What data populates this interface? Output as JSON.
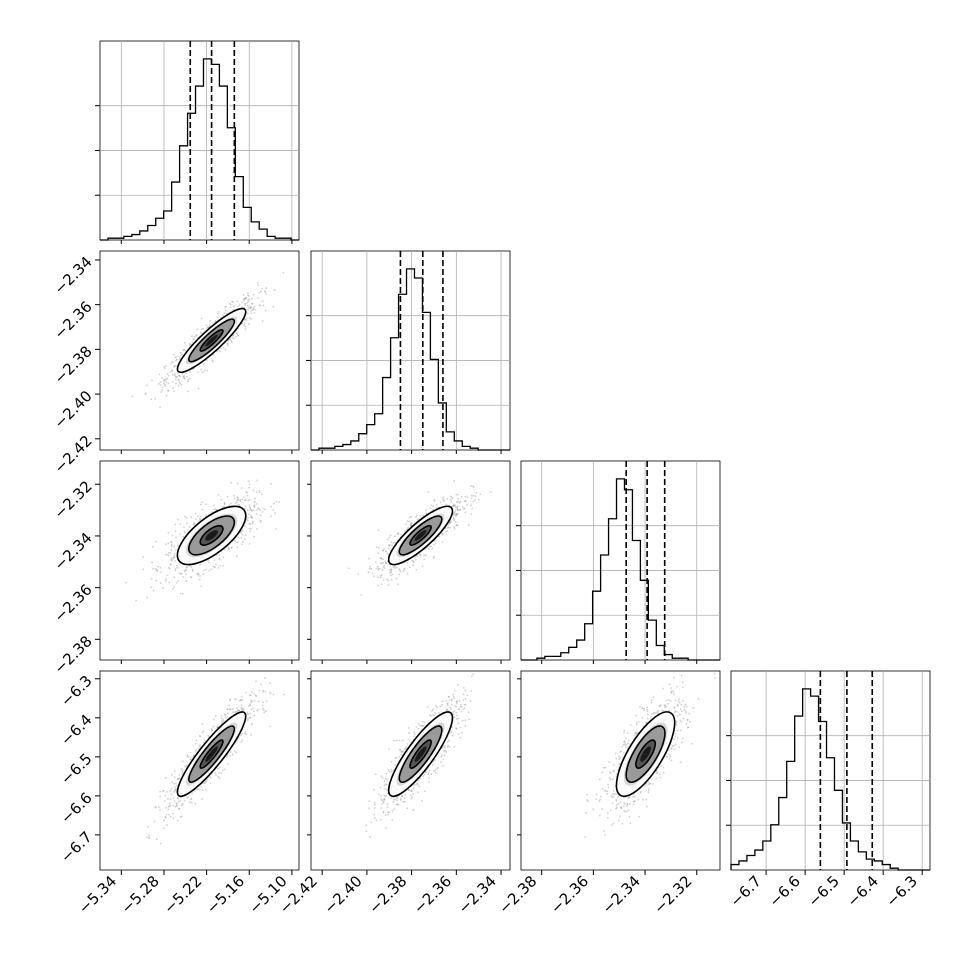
{
  "chart_data": {
    "type": "corner",
    "grid": true,
    "variables": [
      {
        "range": [
          -5.37,
          -5.09
        ],
        "ticks": [
          -5.34,
          -5.28,
          -5.22,
          -5.16,
          -5.1
        ],
        "tick_labels": [
          "−5.34",
          "−5.28",
          "−5.22",
          "−5.16",
          "−5.10"
        ]
      },
      {
        "range": [
          -2.425,
          -2.336
        ],
        "ticks": [
          -2.42,
          -2.4,
          -2.38,
          -2.36,
          -2.34
        ],
        "tick_labels": [
          "−2.42",
          "−2.40",
          "−2.38",
          "−2.36",
          "−2.34"
        ]
      },
      {
        "range": [
          -2.388,
          -2.311
        ],
        "ticks": [
          -2.38,
          -2.36,
          -2.34,
          -2.32
        ],
        "tick_labels": [
          "−2.38",
          "−2.36",
          "−2.34",
          "−2.32"
        ]
      },
      {
        "range": [
          -6.79,
          -6.28
        ],
        "ticks": [
          -6.7,
          -6.6,
          -6.5,
          -6.4,
          -6.3
        ],
        "tick_labels": [
          "−6.7",
          "−6.6",
          "−6.5",
          "−6.4",
          "−6.3"
        ]
      }
    ],
    "histograms": [
      {
        "variable": 0,
        "counts": [
          0,
          1,
          1,
          2,
          3,
          5,
          8,
          12,
          16,
          32,
          52,
          70,
          85,
          100,
          97,
          85,
          62,
          35,
          18,
          10,
          6,
          2,
          1,
          1,
          0
        ],
        "quantiles": [
          -5.243,
          -5.213,
          -5.181
        ]
      },
      {
        "variable": 1,
        "counts": [
          0,
          1,
          1,
          2,
          3,
          5,
          9,
          14,
          20,
          40,
          62,
          86,
          100,
          95,
          76,
          50,
          26,
          10,
          5,
          2,
          1,
          0,
          0,
          0,
          0
        ],
        "quantiles": [
          -2.385,
          -2.375,
          -2.366
        ]
      },
      {
        "variable": 2,
        "counts": [
          0,
          0,
          1,
          2,
          2,
          4,
          7,
          11,
          20,
          38,
          58,
          78,
          100,
          94,
          66,
          44,
          22,
          8,
          3,
          1,
          1,
          0,
          0,
          0,
          0
        ],
        "quantiles": [
          -2.3473,
          -2.3392,
          -2.3324
        ]
      },
      {
        "variable": 3,
        "counts": [
          3,
          5,
          8,
          11,
          16,
          25,
          40,
          60,
          85,
          100,
          96,
          82,
          62,
          44,
          26,
          16,
          10,
          6,
          5,
          3,
          1,
          0,
          0,
          0,
          0
        ],
        "quantiles": [
          -6.561,
          -6.493,
          -6.428
        ]
      }
    ],
    "pairs": [
      {
        "x": 0,
        "y": 1,
        "mean": [
          -5.213,
          -2.376
        ],
        "sd": [
          0.032,
          0.0095
        ],
        "corr": 0.9
      },
      {
        "x": 0,
        "y": 2,
        "mean": [
          -5.213,
          -2.3398
        ],
        "sd": [
          0.032,
          0.0075
        ],
        "corr": 0.68
      },
      {
        "x": 1,
        "y": 2,
        "mean": [
          -2.376,
          -2.3398
        ],
        "sd": [
          0.0095,
          0.0075
        ],
        "corr": 0.84
      },
      {
        "x": 0,
        "y": 3,
        "mean": [
          -5.213,
          -6.493
        ],
        "sd": [
          0.032,
          0.072
        ],
        "corr": 0.9
      },
      {
        "x": 1,
        "y": 3,
        "mean": [
          -2.376,
          -6.493
        ],
        "sd": [
          0.0095,
          0.072
        ],
        "corr": 0.86
      },
      {
        "x": 2,
        "y": 3,
        "mean": [
          -2.3398,
          -6.493
        ],
        "sd": [
          0.0075,
          0.072
        ],
        "corr": 0.74
      }
    ],
    "contour_levels_sigma": [
      0.5,
      1.0,
      1.5
    ],
    "colors": {
      "line": "#000000",
      "points": "#9a9a9a",
      "grid": "#b0b0b0"
    }
  }
}
